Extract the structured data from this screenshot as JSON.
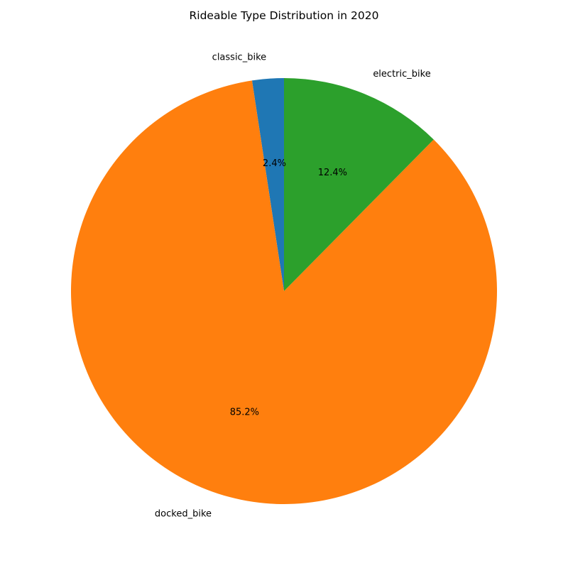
{
  "chart_data": {
    "type": "pie",
    "title": "Rideable Type Distribution in 2020",
    "slices": [
      {
        "label": "classic_bike",
        "value": 2.4,
        "pct_label": "2.4%",
        "color": "#1f77b4"
      },
      {
        "label": "docked_bike",
        "value": 85.2,
        "pct_label": "85.2%",
        "color": "#ff7f0e"
      },
      {
        "label": "electric_bike",
        "value": 12.4,
        "pct_label": "12.4%",
        "color": "#2ca02c"
      }
    ],
    "start_angle_deg": 90,
    "direction": "counterclockwise",
    "legend": "none"
  }
}
